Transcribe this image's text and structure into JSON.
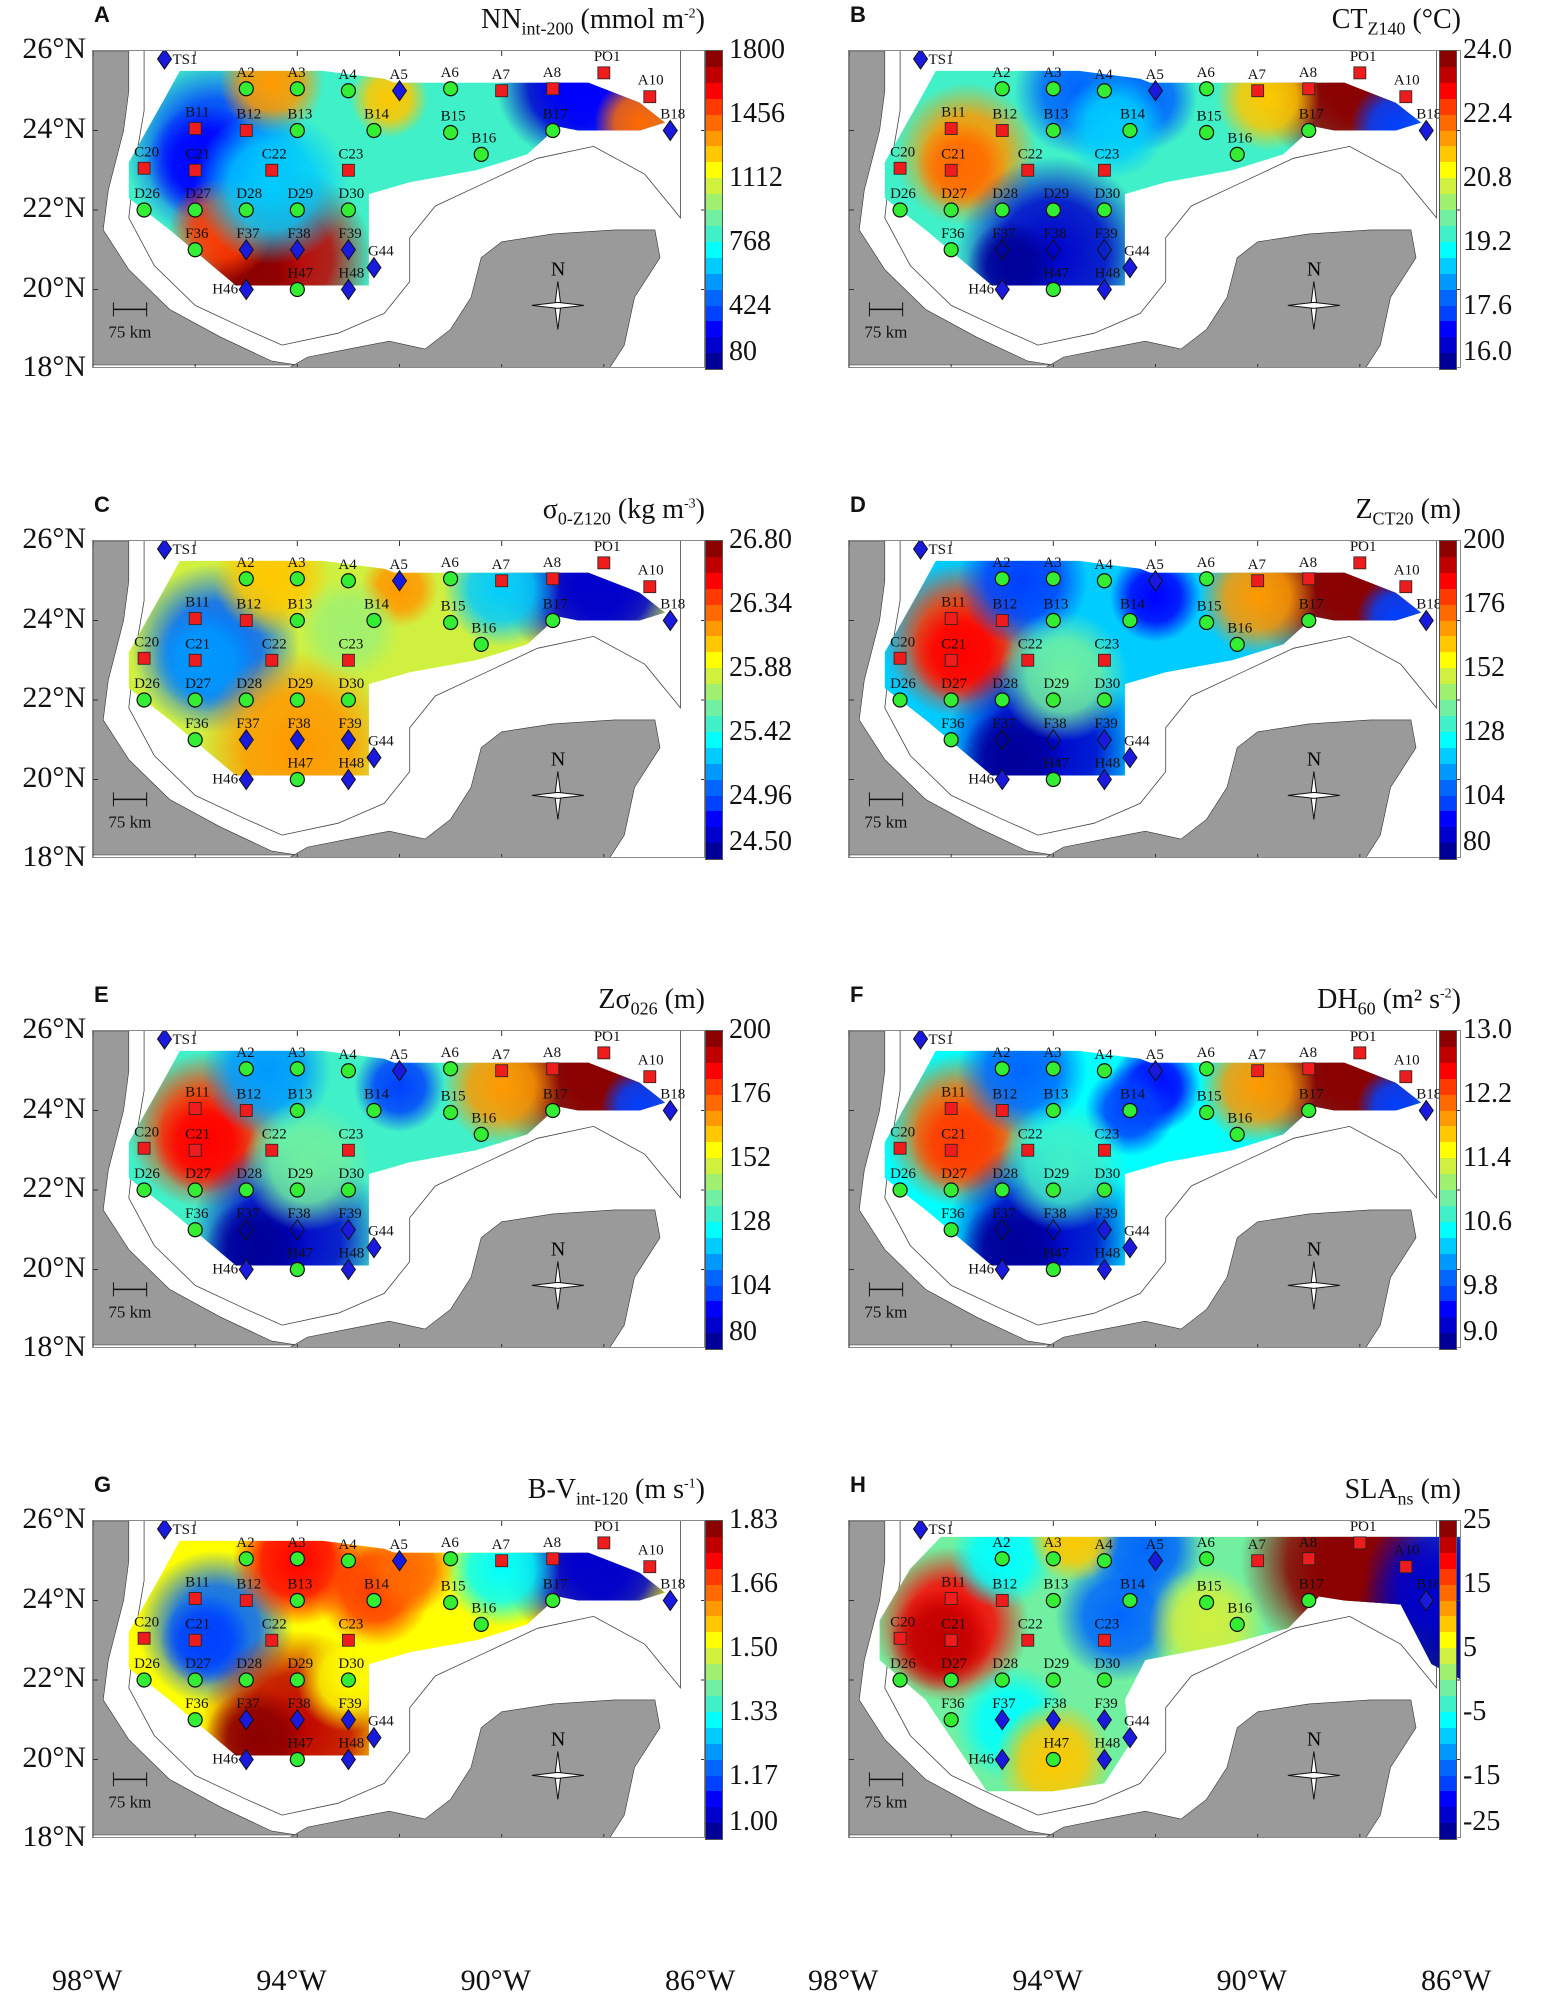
{
  "chart_data": [
    {
      "panel": "A",
      "type": "heatmap",
      "title": "NN_int-200 (mmol m^-2)",
      "title_main": "NN",
      "title_sub": "int-200",
      "title_unit": " (mmol m",
      "title_sup": "-2",
      "title_end": ")",
      "colorbar_ticks": [
        "1800",
        "1456",
        "1112",
        "768",
        "424",
        "80"
      ],
      "range": [
        80,
        1800
      ]
    },
    {
      "panel": "B",
      "type": "heatmap",
      "title": "CT_Z140 (°C)",
      "title_main": "CT",
      "title_sub": "Z140",
      "title_unit": " (°C)",
      "title_sup": "",
      "title_end": "",
      "colorbar_ticks": [
        "24.0",
        "22.4",
        "20.8",
        "19.2",
        "17.6",
        "16.0"
      ],
      "range": [
        16.0,
        24.0
      ]
    },
    {
      "panel": "C",
      "type": "heatmap",
      "title": "σ0-Z120 (kg m^-3)",
      "title_main": "σ",
      "title_sub": "0-Z120",
      "title_unit": " (kg m",
      "title_sup": "-3",
      "title_end": ")",
      "colorbar_ticks": [
        "26.80",
        "26.34",
        "25.88",
        "25.42",
        "24.96",
        "24.50"
      ],
      "range": [
        24.5,
        26.8
      ]
    },
    {
      "panel": "D",
      "type": "heatmap",
      "title": "Z_CT20 (m)",
      "title_main": "Z",
      "title_sub": "CT20",
      "title_unit": " (m)",
      "title_sup": "",
      "title_end": "",
      "colorbar_ticks": [
        "200",
        "176",
        "152",
        "128",
        "104",
        "80"
      ],
      "range": [
        80,
        200
      ]
    },
    {
      "panel": "E",
      "type": "heatmap",
      "title": "Zσ026 (m)",
      "title_main": "Zσ",
      "title_sub": "026",
      "title_unit": " (m)",
      "title_sup": "",
      "title_end": "",
      "colorbar_ticks": [
        "200",
        "176",
        "152",
        "128",
        "104",
        "80"
      ],
      "range": [
        80,
        200
      ]
    },
    {
      "panel": "F",
      "type": "heatmap",
      "title": "DH60 (m² s^-2)",
      "title_main": "DH",
      "title_sub": "60",
      "title_unit": " (m² s",
      "title_sup": "-2",
      "title_end": ")",
      "colorbar_ticks": [
        "13.0",
        "12.2",
        "11.4",
        "10.6",
        "9.8",
        "9.0"
      ],
      "range": [
        9.0,
        13.0
      ]
    },
    {
      "panel": "G",
      "type": "heatmap",
      "title": "B-V_int-120 (m s^-1)",
      "title_main": "B-V",
      "title_sub": "int-120",
      "title_unit": " (m s",
      "title_sup": "-1",
      "title_end": ")",
      "colorbar_ticks": [
        "1.83",
        "1.66",
        "1.50",
        "1.33",
        "1.17",
        "1.00"
      ],
      "range": [
        1.0,
        1.83
      ]
    },
    {
      "panel": "H",
      "type": "heatmap",
      "title": "SLA_ns (m)",
      "title_main": "SLA",
      "title_sub": "ns",
      "title_unit": " (m)",
      "title_sup": "",
      "title_end": "",
      "colorbar_ticks": [
        "25",
        "15",
        "5",
        "-5",
        "-15",
        "-25"
      ],
      "range": [
        -25,
        25
      ]
    }
  ],
  "axes": {
    "lat_ticks": [
      "26°N",
      "24°N",
      "22°N",
      "20°N",
      "18°N"
    ],
    "lon_ticks": [
      "98°W",
      "94°W",
      "90°W",
      "86°W"
    ],
    "xlim": [
      -98,
      -86
    ],
    "ylim": [
      18,
      26
    ]
  },
  "scale_bar": "75 km",
  "north_label": "N",
  "colormap": [
    "#8b0000",
    "#c00000",
    "#ff0000",
    "#ff3a00",
    "#ff6a00",
    "#ff9900",
    "#ffc800",
    "#ffff00",
    "#d0f040",
    "#a0f070",
    "#70f0a0",
    "#40f0c8",
    "#00ffff",
    "#00ccff",
    "#0099ff",
    "#0066ff",
    "#0040ff",
    "#0000ff",
    "#0000cc",
    "#000099"
  ],
  "stations": [
    {
      "id": "TS1",
      "lon": -96.6,
      "lat": 25.8
    },
    {
      "id": "A2",
      "lon": -95.0,
      "lat": 25.05
    },
    {
      "id": "A3",
      "lon": -94.0,
      "lat": 25.05
    },
    {
      "id": "A4",
      "lon": -93.0,
      "lat": 25.0
    },
    {
      "id": "A5",
      "lon": -92.0,
      "lat": 25.0
    },
    {
      "id": "A6",
      "lon": -91.0,
      "lat": 25.05
    },
    {
      "id": "A7",
      "lon": -90.0,
      "lat": 25.0
    },
    {
      "id": "A8",
      "lon": -89.0,
      "lat": 25.05
    },
    {
      "id": "PO1",
      "lon": -88.0,
      "lat": 25.45
    },
    {
      "id": "A10",
      "lon": -87.1,
      "lat": 24.85
    },
    {
      "id": "B11",
      "lon": -96.0,
      "lat": 24.05
    },
    {
      "id": "B12",
      "lon": -95.0,
      "lat": 24.0
    },
    {
      "id": "B13",
      "lon": -94.0,
      "lat": 24.0
    },
    {
      "id": "B14",
      "lon": -92.5,
      "lat": 24.0
    },
    {
      "id": "B15",
      "lon": -91.0,
      "lat": 23.95
    },
    {
      "id": "B16",
      "lon": -90.4,
      "lat": 23.4
    },
    {
      "id": "B17",
      "lon": -89.0,
      "lat": 24.0
    },
    {
      "id": "B18",
      "lon": -86.7,
      "lat": 24.0
    },
    {
      "id": "C20",
      "lon": -97.0,
      "lat": 23.05
    },
    {
      "id": "C21",
      "lon": -96.0,
      "lat": 23.0
    },
    {
      "id": "C22",
      "lon": -94.5,
      "lat": 23.0
    },
    {
      "id": "C23",
      "lon": -93.0,
      "lat": 23.0
    },
    {
      "id": "D26",
      "lon": -97.0,
      "lat": 22.0
    },
    {
      "id": "D27",
      "lon": -96.0,
      "lat": 22.0
    },
    {
      "id": "D28",
      "lon": -95.0,
      "lat": 22.0
    },
    {
      "id": "D29",
      "lon": -94.0,
      "lat": 22.0
    },
    {
      "id": "D30",
      "lon": -93.0,
      "lat": 22.0
    },
    {
      "id": "F36",
      "lon": -96.0,
      "lat": 21.0
    },
    {
      "id": "F37",
      "lon": -95.0,
      "lat": 21.0
    },
    {
      "id": "F38",
      "lon": -94.0,
      "lat": 21.0
    },
    {
      "id": "F39",
      "lon": -93.0,
      "lat": 21.0
    },
    {
      "id": "G44",
      "lon": -92.5,
      "lat": 20.55
    },
    {
      "id": "H46",
      "lon": -95.0,
      "lat": 20.0
    },
    {
      "id": "H47",
      "lon": -94.0,
      "lat": 20.0
    },
    {
      "id": "H48",
      "lon": -93.0,
      "lat": 20.0
    }
  ],
  "marker_types": {
    "diamond_blue": [
      "TS1",
      "A5",
      "B18",
      "F37",
      "F38",
      "F39",
      "G44",
      "H46",
      "H48"
    ],
    "square_red": [
      "A7",
      "A8",
      "PO1",
      "A10",
      "B11",
      "B12",
      "C20",
      "C21",
      "C22",
      "C23"
    ],
    "circle_green": [
      "A2",
      "A3",
      "A4",
      "A6",
      "B13",
      "B14",
      "B15",
      "B16",
      "B17",
      "D26",
      "D27",
      "D28",
      "D29",
      "D30",
      "F36",
      "H47"
    ]
  },
  "legend_position": "right colorbar per panel",
  "grid": false
}
